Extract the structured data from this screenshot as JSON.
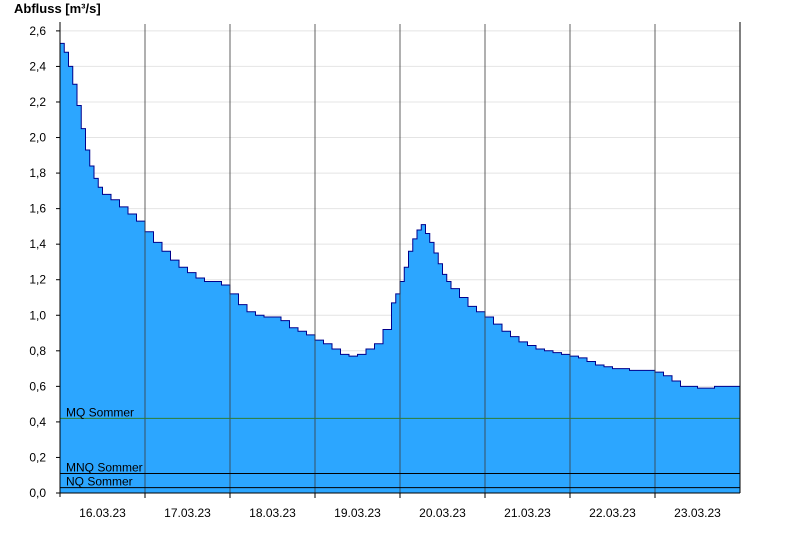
{
  "chart_data": {
    "type": "area",
    "title": "",
    "ylabel": "Abfluss [m³/s]",
    "xlabel": "",
    "ylim": [
      0,
      2.65
    ],
    "yticks": [
      0.0,
      0.2,
      0.4,
      0.6,
      0.8,
      1.0,
      1.2,
      1.4,
      1.6,
      1.8,
      2.0,
      2.2,
      2.4,
      2.6
    ],
    "ytick_labels": [
      "0,0",
      "0,2",
      "0,4",
      "0,6",
      "0,8",
      "1,0",
      "1,2",
      "1,4",
      "1,6",
      "1,8",
      "2,0",
      "2,2",
      "2,4",
      "2,6"
    ],
    "xlim_days": [
      -0.5,
      7.5
    ],
    "xtick_labels": [
      "16.03.23",
      "17.03.23",
      "18.03.23",
      "19.03.23",
      "20.03.23",
      "21.03.23",
      "22.03.23",
      "23.03.23"
    ],
    "grid": true,
    "fill_color": "#2ca6ff",
    "line_color": "#00008b",
    "series": [
      {
        "values_x_days": [
          -0.5,
          -0.45,
          -0.4,
          -0.35,
          -0.3,
          -0.25,
          -0.2,
          -0.15,
          -0.1,
          -0.05,
          0.0,
          0.1,
          0.2,
          0.3,
          0.4,
          0.5,
          0.6,
          0.7,
          0.8,
          0.9,
          1.0,
          1.1,
          1.2,
          1.3,
          1.4,
          1.5,
          1.6,
          1.7,
          1.8,
          1.9,
          2.0,
          2.1,
          2.2,
          2.3,
          2.4,
          2.5,
          2.6,
          2.7,
          2.8,
          2.9,
          3.0,
          3.1,
          3.2,
          3.3,
          3.4,
          3.45,
          3.5,
          3.55,
          3.6,
          3.65,
          3.7,
          3.75,
          3.8,
          3.85,
          3.9,
          3.95,
          4.0,
          4.05,
          4.1,
          4.2,
          4.3,
          4.4,
          4.5,
          4.6,
          4.7,
          4.8,
          4.9,
          5.0,
          5.1,
          5.2,
          5.3,
          5.4,
          5.5,
          5.6,
          5.7,
          5.8,
          5.9,
          6.0,
          6.1,
          6.2,
          6.3,
          6.4,
          6.5,
          6.6,
          6.7,
          6.8,
          6.9,
          7.0,
          7.1,
          7.2,
          7.3,
          7.4,
          7.5
        ],
        "values_y": [
          2.53,
          2.48,
          2.4,
          2.3,
          2.18,
          2.05,
          1.93,
          1.84,
          1.77,
          1.72,
          1.68,
          1.65,
          1.61,
          1.57,
          1.53,
          1.47,
          1.41,
          1.36,
          1.31,
          1.27,
          1.24,
          1.21,
          1.19,
          1.19,
          1.17,
          1.12,
          1.06,
          1.02,
          1.0,
          0.99,
          0.99,
          0.97,
          0.93,
          0.91,
          0.89,
          0.86,
          0.84,
          0.81,
          0.78,
          0.77,
          0.78,
          0.81,
          0.84,
          0.92,
          1.07,
          1.12,
          1.19,
          1.27,
          1.36,
          1.43,
          1.48,
          1.51,
          1.46,
          1.41,
          1.35,
          1.29,
          1.23,
          1.19,
          1.15,
          1.1,
          1.05,
          1.02,
          0.99,
          0.95,
          0.91,
          0.88,
          0.85,
          0.83,
          0.81,
          0.8,
          0.79,
          0.78,
          0.77,
          0.76,
          0.74,
          0.72,
          0.71,
          0.7,
          0.7,
          0.69,
          0.69,
          0.69,
          0.68,
          0.66,
          0.63,
          0.6,
          0.6,
          0.59,
          0.59,
          0.6,
          0.6,
          0.6,
          0.6
        ]
      }
    ],
    "reference_lines": [
      {
        "label": "MQ Sommer",
        "value": 0.42,
        "color": "#2e7d32"
      },
      {
        "label": "MNQ Sommer",
        "value": 0.11,
        "color": "#000000"
      },
      {
        "label": "NQ Sommer",
        "value": 0.03,
        "color": "#000000"
      }
    ]
  }
}
